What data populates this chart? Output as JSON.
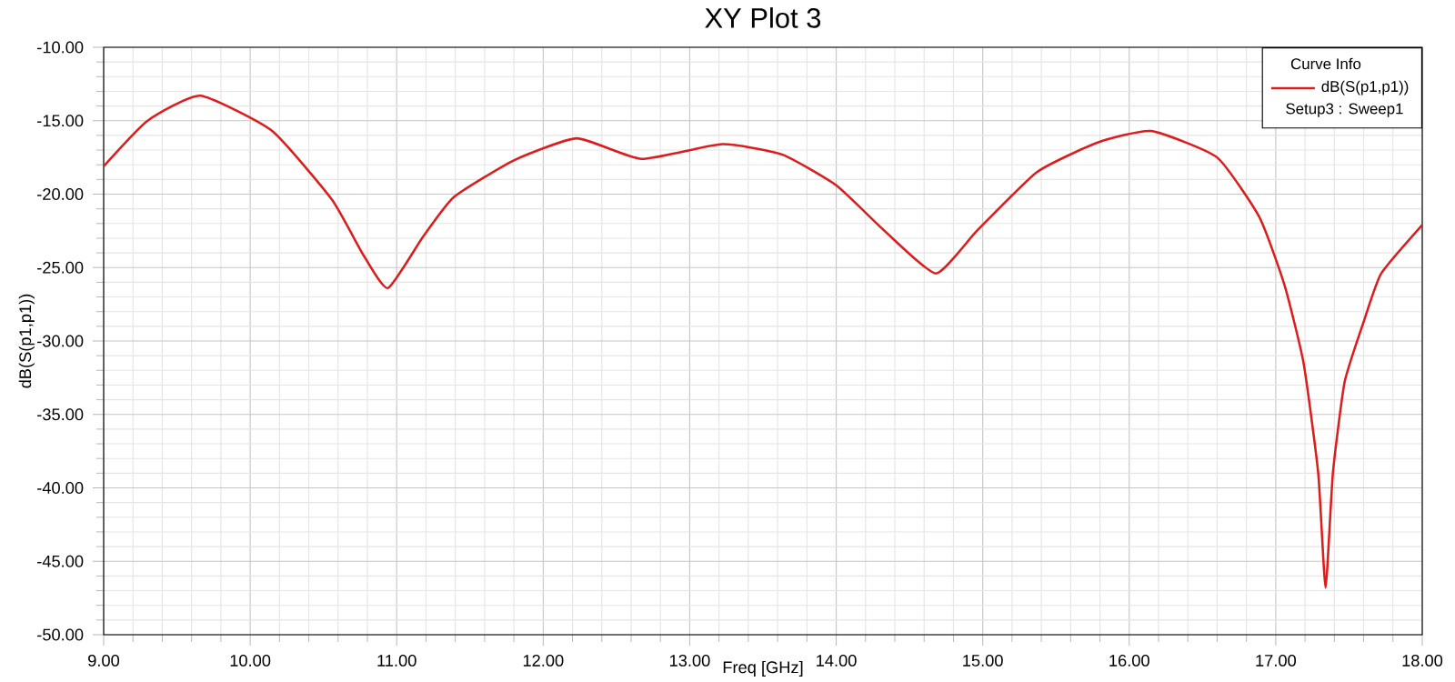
{
  "chart_data": {
    "type": "line",
    "title": "XY Plot 3",
    "xlabel": "Freq [GHz]",
    "ylabel": "dB(S(p1,p1))",
    "legend_title": "Curve Info",
    "annotations": [
      "Setup3 : Sweep1"
    ],
    "series": [
      {
        "name": "dB(S(p1,p1))",
        "color": "#dd1c1c",
        "x": [
          9.0,
          9.3,
          9.66,
          10.15,
          10.56,
          10.77,
          10.94,
          11.18,
          11.39,
          11.8,
          12.23,
          12.67,
          13.22,
          13.63,
          14.0,
          14.33,
          14.68,
          14.96,
          15.37,
          15.78,
          16.15,
          16.6,
          16.89,
          17.06,
          17.19,
          17.29,
          17.34,
          17.39,
          17.47,
          17.6,
          17.72,
          18.0
        ],
        "values": [
          -18.1,
          -15.0,
          -13.3,
          -15.7,
          -20.4,
          -24.1,
          -26.4,
          -22.9,
          -20.2,
          -17.7,
          -16.2,
          -17.6,
          -16.6,
          -17.3,
          -19.4,
          -22.5,
          -25.4,
          -22.5,
          -18.5,
          -16.5,
          -15.7,
          -17.5,
          -21.6,
          -26.2,
          -31.5,
          -39.0,
          -46.8,
          -39.0,
          -32.8,
          -28.7,
          -25.4,
          -22.1
        ]
      }
    ],
    "xlim": [
      9,
      18
    ],
    "ylim": [
      -50,
      -10
    ],
    "xticks": [
      {
        "value": 9,
        "label": "9.00"
      },
      {
        "value": 10,
        "label": "10.00"
      },
      {
        "value": 11,
        "label": "11.00"
      },
      {
        "value": 12,
        "label": "12.00"
      },
      {
        "value": 13,
        "label": "13.00"
      },
      {
        "value": 14,
        "label": "14.00"
      },
      {
        "value": 15,
        "label": "15.00"
      },
      {
        "value": 16,
        "label": "16.00"
      },
      {
        "value": 17,
        "label": "17.00"
      },
      {
        "value": 18,
        "label": "18.00"
      }
    ],
    "yticks": [
      {
        "value": -10,
        "label": "-10.00"
      },
      {
        "value": -15,
        "label": "-15.00"
      },
      {
        "value": -20,
        "label": "-20.00"
      },
      {
        "value": -25,
        "label": "-25.00"
      },
      {
        "value": -30,
        "label": "-30.00"
      },
      {
        "value": -35,
        "label": "-35.00"
      },
      {
        "value": -40,
        "label": "-40.00"
      },
      {
        "value": -45,
        "label": "-45.00"
      },
      {
        "value": -50,
        "label": "-50.00"
      }
    ],
    "grid": true,
    "legend": "top right",
    "marker": "none",
    "line_style": "solid"
  }
}
